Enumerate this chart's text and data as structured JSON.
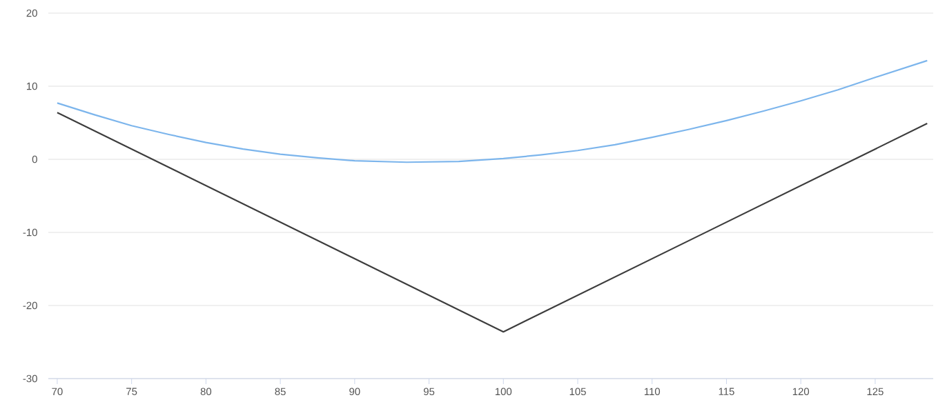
{
  "chart_data": {
    "type": "line",
    "xlim": [
      69.4,
      128.9
    ],
    "ylim": [
      -30,
      20
    ],
    "xticks": [
      70,
      75,
      80,
      85,
      90,
      95,
      100,
      105,
      110,
      115,
      120,
      125
    ],
    "yticks": [
      -30,
      -20,
      -10,
      0,
      10,
      20
    ],
    "grid": "y",
    "marker": "none",
    "line_style": "solid",
    "series": [
      {
        "color": "#7cb5ec",
        "x": [
          70,
          72.5,
          75,
          77.5,
          80,
          82.5,
          85,
          87.5,
          90,
          93.5,
          97,
          100,
          102.5,
          105,
          107.5,
          110,
          112.5,
          115,
          117.5,
          120,
          122.5,
          125,
          128.5
        ],
        "values": [
          7.7,
          6.1,
          4.6,
          3.4,
          2.3,
          1.4,
          0.7,
          0.2,
          -0.2,
          -0.4,
          -0.3,
          0.1,
          0.6,
          1.2,
          2.0,
          3.0,
          4.1,
          5.3,
          6.6,
          8.0,
          9.5,
          11.2,
          13.5
        ]
      },
      {
        "color": "#3d3d3d",
        "x": [
          70,
          100,
          128.5
        ],
        "values": [
          6.4,
          -23.6,
          4.9
        ]
      }
    ]
  }
}
